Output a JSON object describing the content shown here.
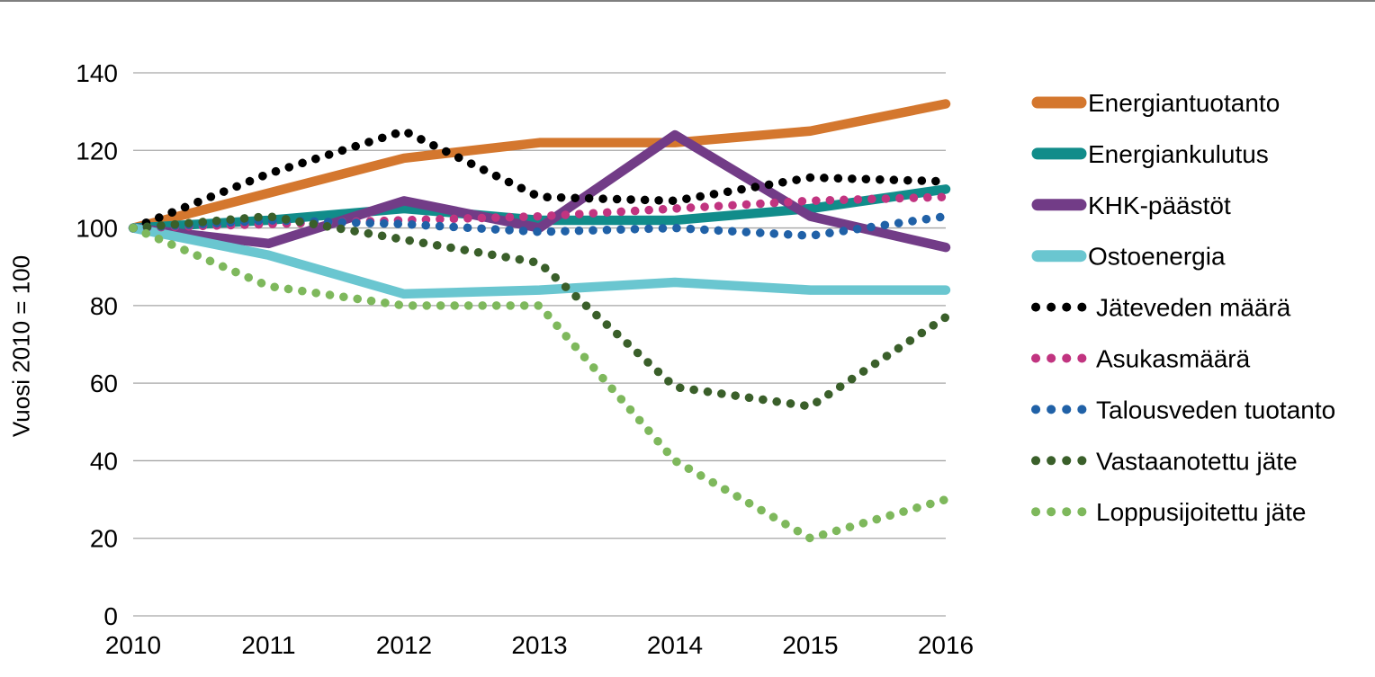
{
  "figure": {
    "background": "#ffffff",
    "top_border_color": "#7f7f7f"
  },
  "chart_data": {
    "type": "line",
    "title": "",
    "xlabel": "",
    "ylabel": "Vuosi 2010 = 100",
    "categories": [
      "2010",
      "2011",
      "2012",
      "2013",
      "2014",
      "2015",
      "2016"
    ],
    "ylim": [
      0,
      140
    ],
    "ytick_step": 20,
    "yticks": [
      0,
      20,
      40,
      60,
      80,
      100,
      120,
      140
    ],
    "grid": "horizontal",
    "gridline_color": "#a6a6a6",
    "legend_position": "right",
    "series": [
      {
        "name": "Energiantuotanto",
        "color": "#d4772e",
        "style": "solid",
        "values": [
          100,
          109,
          118,
          122,
          122,
          125,
          132
        ]
      },
      {
        "name": "Energiankulutus",
        "color": "#118c8a",
        "style": "solid",
        "values": [
          100,
          102,
          105,
          102,
          102,
          105,
          110
        ]
      },
      {
        "name": "KHK-päästöt",
        "color": "#723c87",
        "style": "solid",
        "values": [
          100,
          96,
          107,
          100,
          124,
          103,
          95
        ]
      },
      {
        "name": "Ostoenergia",
        "color": "#6ac6d0",
        "style": "solid",
        "values": [
          100,
          93,
          83,
          84,
          86,
          84,
          84
        ]
      },
      {
        "name": "Jäteveden määrä",
        "color": "#000000",
        "style": "dotted",
        "values": [
          100,
          114,
          125,
          108,
          107,
          113,
          112
        ]
      },
      {
        "name": "Asukasmäärä",
        "color": "#c13480",
        "style": "dotted",
        "values": [
          100,
          101,
          102,
          103,
          105,
          107,
          108
        ]
      },
      {
        "name": "Talousveden tuotanto",
        "color": "#2061a7",
        "style": "dotted",
        "values": [
          100,
          102,
          101,
          99,
          100,
          98,
          103
        ]
      },
      {
        "name": "Vastaanotettu jäte",
        "color": "#3a5f2a",
        "style": "dotted",
        "values": [
          100,
          103,
          97,
          91,
          59,
          54,
          77
        ]
      },
      {
        "name": "Loppusijoitettu jäte",
        "color": "#7eb85c",
        "style": "dotted",
        "values": [
          100,
          85,
          80,
          80,
          40,
          20,
          30
        ]
      }
    ]
  }
}
